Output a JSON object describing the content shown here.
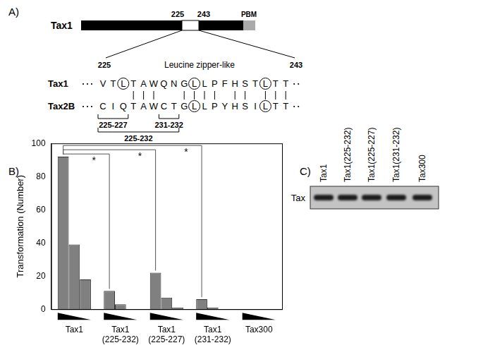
{
  "panels": [
    "A)",
    "B)",
    "C)"
  ],
  "diagram": {
    "protein": "Tax1",
    "start": "225",
    "end": "243",
    "pbm": "PBM",
    "motif": "Leucine zipper-like",
    "motif_start": "225",
    "motif_end": "243",
    "sequences": [
      {
        "name": "Tax1",
        "residues": "VTLTAWQNGLLPFHSTLTT",
        "circled": [
          3,
          10,
          17
        ]
      },
      {
        "name": "Tax2B",
        "residues": "CIQTAWCTGLLPYHSILTT",
        "circled": [
          10,
          17
        ]
      }
    ],
    "mutations": [
      {
        "label": "225-227",
        "from": 1,
        "to": 3
      },
      {
        "label": "231-232",
        "from": 7,
        "to": 8
      },
      {
        "label": "225-232",
        "from": 1,
        "to": 8
      }
    ]
  },
  "chart_data": {
    "type": "bar",
    "ylabel": "Transformation (Number)",
    "categories": [
      [
        "Tax1"
      ],
      [
        "Tax1",
        "(225-232)"
      ],
      [
        "Tax1",
        "(225-227)"
      ],
      [
        "Tax1",
        "(231-232)"
      ],
      [
        "Tax300"
      ]
    ],
    "series": [
      {
        "color": "#808080",
        "values": [
          92,
          11,
          22,
          6,
          0
        ]
      },
      {
        "color": "#808080",
        "values": [
          39,
          3,
          7,
          1,
          0
        ]
      },
      {
        "color": "#808080",
        "values": [
          18,
          0,
          1,
          0,
          0
        ]
      }
    ],
    "ylim": [
      0,
      100
    ],
    "yticks": [
      0,
      20,
      40,
      60,
      80,
      100
    ],
    "grid": false,
    "significance": [
      {
        "from": 0,
        "to": 1,
        "label": "*"
      },
      {
        "from": 0,
        "to": 2,
        "label": "*"
      },
      {
        "from": 0,
        "to": 3,
        "label": "*"
      }
    ]
  },
  "blot": {
    "band": "Tax",
    "lanes": [
      "Tax1",
      "Tax1(225-232)",
      "Tax1(225-227)",
      "Tax1(231-232)",
      "Tax300"
    ]
  }
}
